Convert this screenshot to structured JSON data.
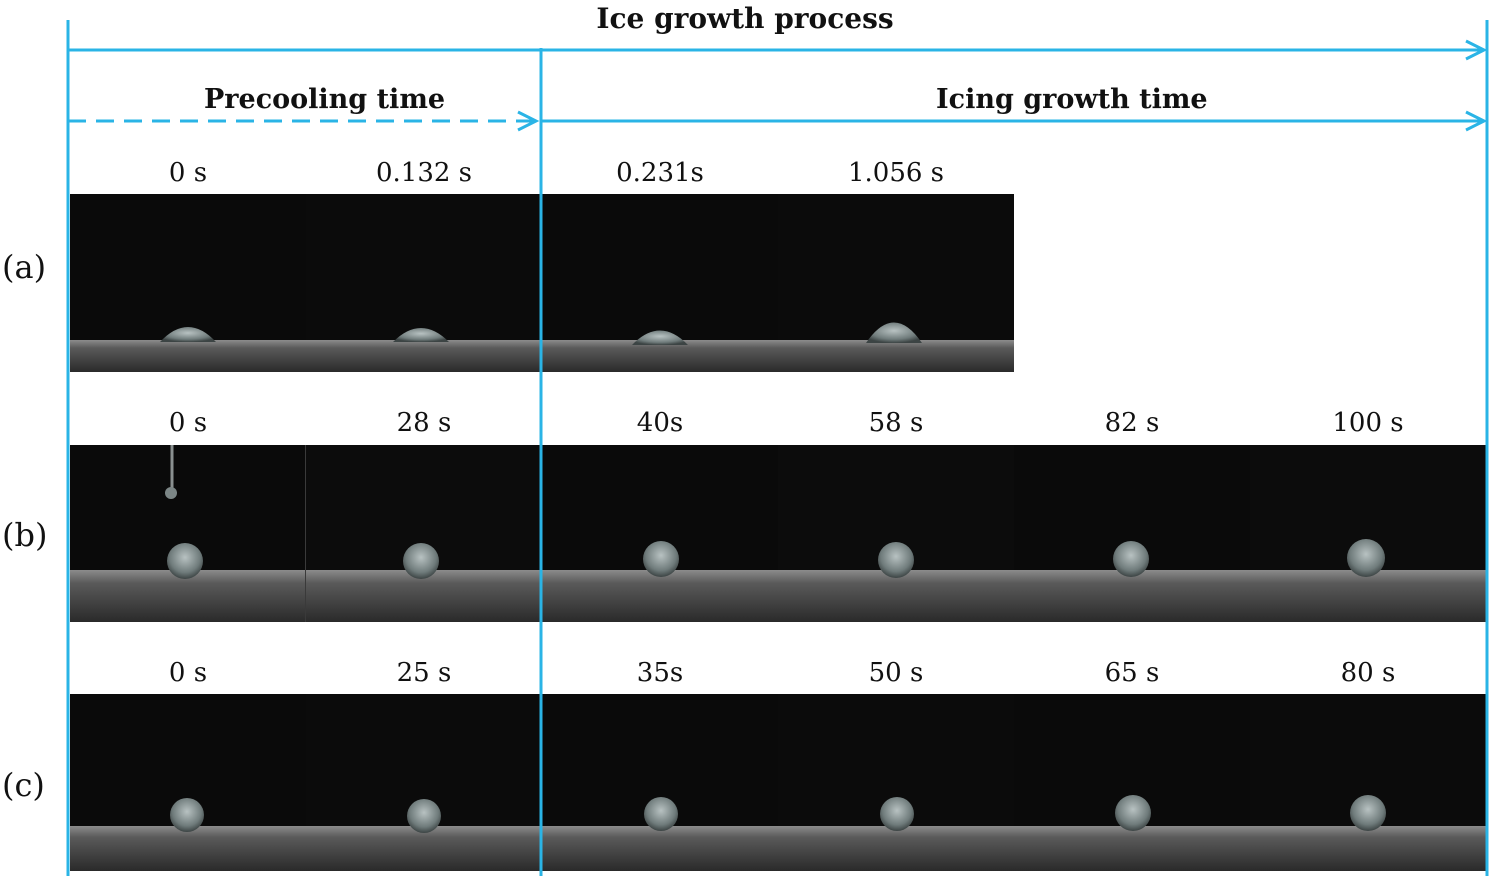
{
  "title": "Ice growth process",
  "phases": {
    "precooling": "Precooling time",
    "icing": "Icing growth time"
  },
  "rows": [
    {
      "label": "(a)",
      "times": [
        "0 s",
        "0.132 s",
        "0.231s",
        "1.056 s"
      ]
    },
    {
      "label": "(b)",
      "times": [
        "0 s",
        "28 s",
        "40s",
        "58 s",
        "82 s",
        "100 s"
      ]
    },
    {
      "label": "(c)",
      "times": [
        "0 s",
        "25 s",
        "35s",
        "50 s",
        "65 s",
        "80 s"
      ]
    }
  ],
  "colors": {
    "arrow": "#2ab4e6",
    "frame_background": "#0a0a0a",
    "surface": "#6f6f6f",
    "droplet": "#9aa6a6"
  }
}
